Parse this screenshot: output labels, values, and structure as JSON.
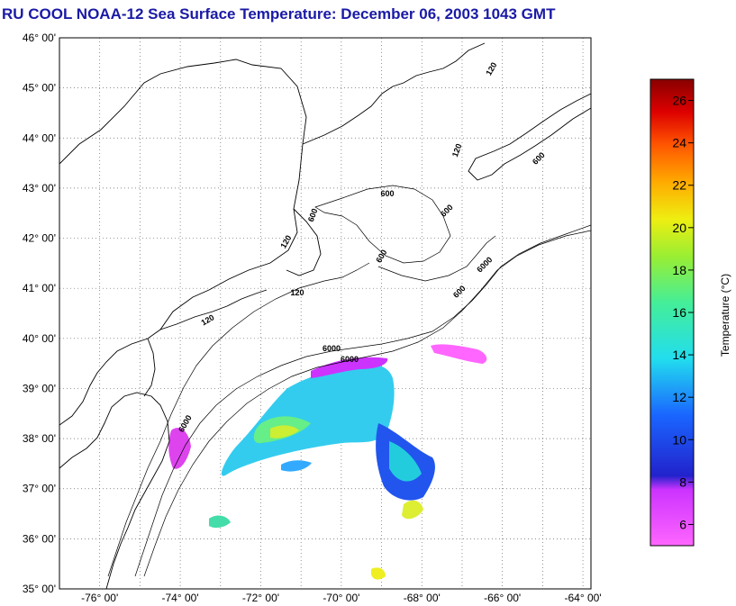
{
  "title": "RU COOL  NOAA-12  Sea Surface Temperature:  December 06, 2003 1043 GMT",
  "map": {
    "lat_labels": [
      "46° 00'",
      "45° 00'",
      "44° 00'",
      "43° 00'",
      "42° 00'",
      "41° 00'",
      "40° 00'",
      "39° 00'",
      "38° 00'",
      "37° 00'",
      "36° 00'",
      "35° 00'"
    ],
    "lon_labels": [
      "-76° 00'",
      "-74° 00'",
      "-72° 00'",
      "-70° 00'",
      "-68° 00'",
      "-66° 00'",
      "-64° 00'"
    ],
    "lat_range": [
      35,
      46
    ],
    "lon_range": [
      -77,
      -63.8
    ],
    "isobath_labels": [
      "120",
      "120",
      "120",
      "120",
      "120",
      "600",
      "600",
      "600",
      "600",
      "600",
      "600",
      "6000",
      "6000",
      "6000",
      "6000"
    ]
  },
  "colorbar": {
    "label": "Temperature (°C)",
    "ticks": [
      "26",
      "24",
      "22",
      "20",
      "18",
      "16",
      "14",
      "12",
      "10",
      "8",
      "6"
    ],
    "range": [
      5,
      27
    ]
  },
  "colors": {
    "title": "#1a1aa6",
    "coast": "#000000",
    "grid": "#555555"
  }
}
